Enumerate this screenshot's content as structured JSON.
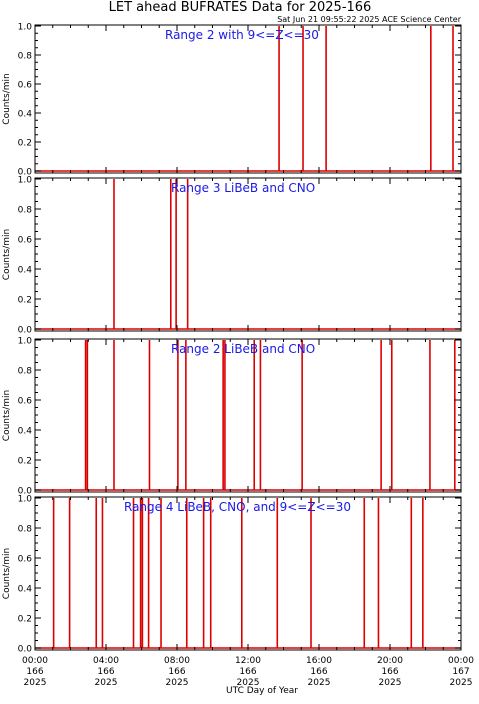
{
  "title": "LET ahead BUFRATES Data for 2025-166",
  "timestamp": "Sat Jun 21 09:55:22 2025 ACE Science Center",
  "xlabel": "UTC Day of Year",
  "x_ticks": [
    {
      "l1": "00:00",
      "l2": "166",
      "l3": "2025"
    },
    {
      "l1": "04:00",
      "l2": "166",
      "l3": "2025"
    },
    {
      "l1": "08:00",
      "l2": "166",
      "l3": "2025"
    },
    {
      "l1": "12:00",
      "l2": "166",
      "l3": "2025"
    },
    {
      "l1": "16:00",
      "l2": "166",
      "l3": "2025"
    },
    {
      "l1": "20:00",
      "l2": "166",
      "l3": "2025"
    },
    {
      "l1": "00:00",
      "l2": "167",
      "l3": "2025"
    }
  ],
  "y_tick_labels": [
    "0.0",
    "0.2",
    "0.4",
    "0.6",
    "0.8",
    "1.0"
  ],
  "colors": {
    "axes": "#000000",
    "data": "#dd0000",
    "panel_title": "#1a1ae6",
    "background": "#ffffff"
  },
  "chart_data": [
    {
      "type": "line",
      "title": "Range 2 with 9<=Z<=30",
      "ylabel": "Counts/min",
      "xlim": [
        0,
        24
      ],
      "ylim": [
        0,
        1
      ],
      "x_unit": "hours UTC, day 166 of 2025",
      "spikes_at_hours": [
        13.75,
        15.1,
        16.4,
        22.3,
        23.55
      ],
      "baseline": 0,
      "spike_value": 1,
      "grid": false
    },
    {
      "type": "line",
      "title": "Range 3 LiBeB and CNO",
      "ylabel": "Counts/min",
      "xlim": [
        0,
        24
      ],
      "ylim": [
        0,
        1
      ],
      "x_unit": "hours UTC, day 166 of 2025",
      "spikes_at_hours": [
        4.45,
        7.65,
        7.95,
        8.6
      ],
      "baseline": 0,
      "spike_value": 1,
      "grid": false
    },
    {
      "type": "line",
      "title": "Range 2 LiBeB and CNO",
      "ylabel": "Counts/min",
      "xlim": [
        0,
        24
      ],
      "ylim": [
        0,
        1
      ],
      "x_unit": "hours UTC, day 166 of 2025",
      "spikes_at_hours": [
        2.85,
        2.95,
        4.45,
        6.45,
        8.05,
        8.5,
        10.6,
        10.7,
        12.35,
        12.7,
        15.05,
        19.5,
        20.1,
        22.25,
        23.65
      ],
      "baseline": 0,
      "spike_value": 1,
      "grid": false
    },
    {
      "type": "line",
      "title": "Range 4 LiBeB, CNO, and 9<=Z<=30",
      "ylabel": "Counts/min",
      "xlim": [
        0,
        24
      ],
      "ylim": [
        0,
        1
      ],
      "x_unit": "hours UTC, day 166 of 2025",
      "spikes_at_hours": [
        1.05,
        1.95,
        3.45,
        3.8,
        5.55,
        5.95,
        6.05,
        6.4,
        7.1,
        8.55,
        9.5,
        9.9,
        11.65,
        13.65,
        15.55,
        18.55,
        19.35,
        21.2,
        21.85
      ],
      "baseline": 0,
      "spike_value": 1,
      "grid": false
    }
  ]
}
